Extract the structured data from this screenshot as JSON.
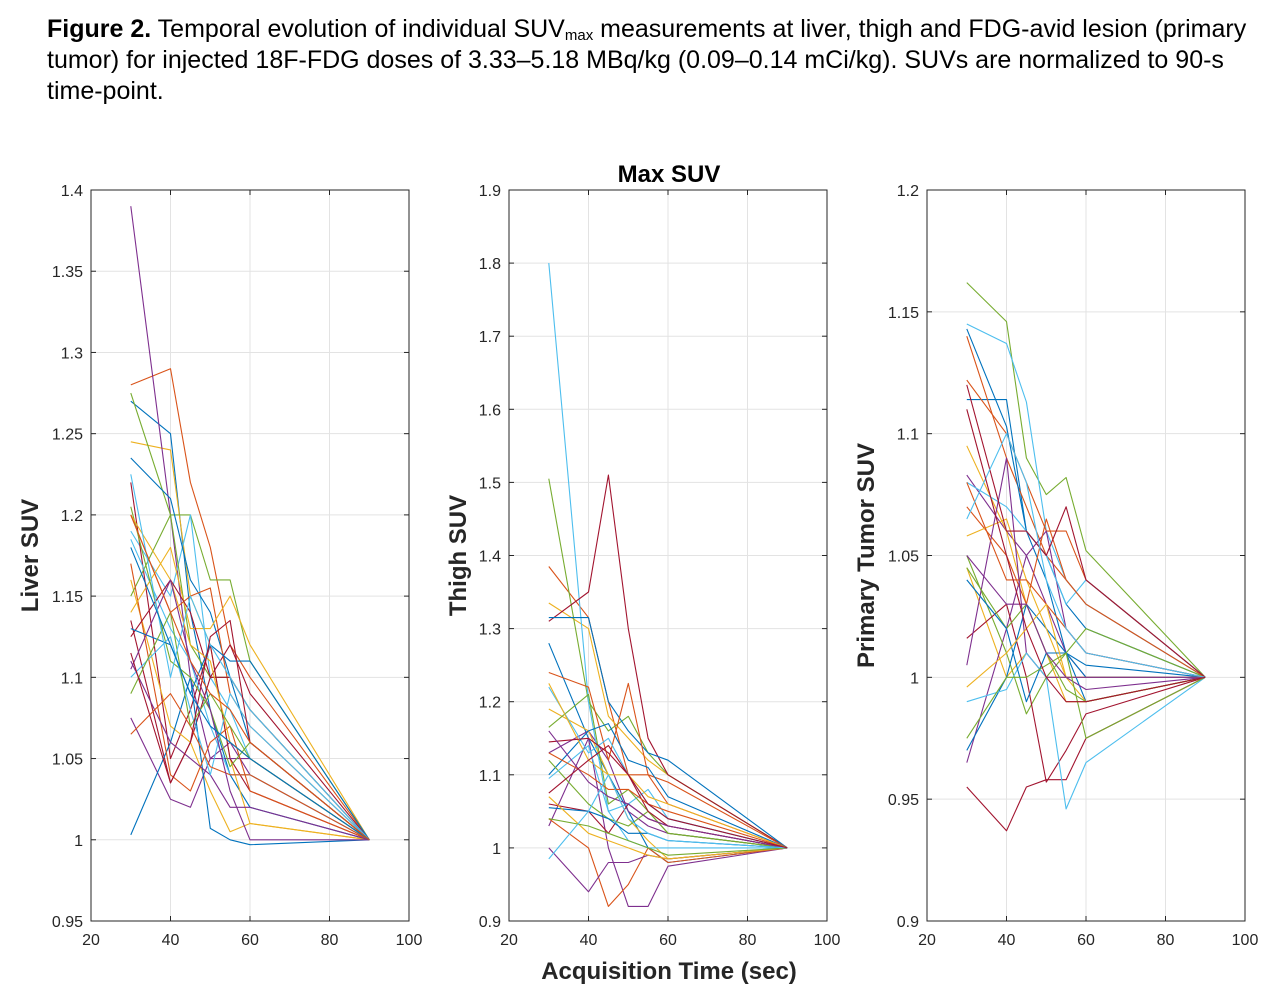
{
  "caption": {
    "label": "Figure 2.",
    "text_a": " Temporal evolution of individual SUV",
    "sub": "max",
    "text_b": " measurements at liver, thigh and FDG-avid lesion (primary tumor) for injected 18F-FDG doses of 3.33–5.18 MBq/kg (0.09–0.14 mCi/kg). SUVs are normalized to 90-s time-point."
  },
  "figure": {
    "title": "Max SUV",
    "xlabel": "Acquisition Time (sec)"
  },
  "series_colors": [
    "#0072BD",
    "#D95319",
    "#EDB120",
    "#7E2F8E",
    "#77AC30",
    "#4DBEEE",
    "#A2142F"
  ],
  "chart_data": [
    {
      "type": "line",
      "id": "liver",
      "ylabel": "Liver SUV",
      "xlim": [
        20,
        100
      ],
      "ylim": [
        0.95,
        1.4
      ],
      "xticks": [
        20,
        40,
        60,
        80,
        100
      ],
      "yticks": [
        0.95,
        1,
        1.05,
        1.1,
        1.15,
        1.2,
        1.25,
        1.3,
        1.35,
        1.4
      ],
      "ytick_labels": [
        "0.95",
        "1",
        "1.05",
        "1.1",
        "1.15",
        "1.2",
        "1.25",
        "1.3",
        "1.35",
        "1.4"
      ],
      "grid": true,
      "x": [
        30,
        40,
        45,
        50,
        55,
        60,
        90
      ],
      "series": [
        {
          "values": [
            1.27,
            1.25,
            1.14,
            1.08,
            1.04,
            1.02,
            1.0
          ]
        },
        {
          "values": [
            1.28,
            1.29,
            1.22,
            1.18,
            1.12,
            1.1,
            1.0
          ]
        },
        {
          "values": [
            1.245,
            1.24,
            1.15,
            1.12,
            1.05,
            1.01,
            1.0
          ]
        },
        {
          "values": [
            1.39,
            1.2,
            1.1,
            1.05,
            1.06,
            1.04,
            1.0
          ]
        },
        {
          "values": [
            1.275,
            1.2,
            1.2,
            1.16,
            1.16,
            1.11,
            1.0
          ]
        },
        {
          "values": [
            1.19,
            1.15,
            1.2,
            1.1,
            1.08,
            1.05,
            1.0
          ]
        },
        {
          "values": [
            1.22,
            1.05,
            1.08,
            1.12,
            1.05,
            1.03,
            1.0
          ]
        },
        {
          "values": [
            1.235,
            1.21,
            1.16,
            1.14,
            1.1,
            1.06,
            1.0
          ]
        },
        {
          "values": [
            1.2,
            1.14,
            1.15,
            1.155,
            1.09,
            1.07,
            1.0
          ]
        },
        {
          "values": [
            1.16,
            1.07,
            1.06,
            1.03,
            1.005,
            1.01,
            1.0
          ]
        },
        {
          "values": [
            1.075,
            1.025,
            1.02,
            1.05,
            1.05,
            1.05,
            1.0
          ]
        },
        {
          "values": [
            1.15,
            1.2,
            1.12,
            1.1,
            1.1,
            1.08,
            1.0
          ]
        },
        {
          "values": [
            1.185,
            1.13,
            1.11,
            1.07,
            1.04,
            1.04,
            1.0
          ]
        },
        {
          "values": [
            1.135,
            1.035,
            1.06,
            1.1,
            1.12,
            1.09,
            1.0
          ]
        },
        {
          "values": [
            1.003,
            1.06,
            1.1,
            1.007,
            1.0,
            0.997,
            1.0
          ]
        },
        {
          "values": [
            1.17,
            1.04,
            1.03,
            1.06,
            1.07,
            1.03,
            1.0
          ]
        },
        {
          "values": [
            1.14,
            1.18,
            1.13,
            1.13,
            1.15,
            1.12,
            1.0
          ]
        },
        {
          "values": [
            1.11,
            1.06,
            1.05,
            1.04,
            1.02,
            1.02,
            1.0
          ]
        },
        {
          "values": [
            1.205,
            1.11,
            1.1,
            1.08,
            1.045,
            1.06,
            1.0
          ]
        },
        {
          "values": [
            1.1,
            1.125,
            1.08,
            1.04,
            1.09,
            1.07,
            1.0
          ]
        },
        {
          "values": [
            1.125,
            1.16,
            1.14,
            1.1,
            1.1,
            1.08,
            1.0
          ]
        },
        {
          "values": [
            1.13,
            1.12,
            1.09,
            1.12,
            1.11,
            1.11,
            1.0
          ]
        },
        {
          "values": [
            1.065,
            1.09,
            1.07,
            1.045,
            1.04,
            1.04,
            1.0
          ]
        },
        {
          "values": [
            1.2,
            1.16,
            1.12,
            1.11,
            1.06,
            1.05,
            1.0
          ]
        },
        {
          "values": [
            1.105,
            1.16,
            1.11,
            1.08,
            1.03,
            1.0,
            1.0
          ]
        },
        {
          "values": [
            1.09,
            1.14,
            1.07,
            1.09,
            1.07,
            1.05,
            1.0
          ]
        },
        {
          "values": [
            1.225,
            1.1,
            1.15,
            1.12,
            1.1,
            1.08,
            1.0
          ]
        },
        {
          "values": [
            1.115,
            1.035,
            1.06,
            1.125,
            1.135,
            1.06,
            1.0
          ]
        },
        {
          "values": [
            1.18,
            1.12,
            1.09,
            1.07,
            1.06,
            1.05,
            1.0
          ]
        },
        {
          "values": [
            1.2,
            1.14,
            1.11,
            1.09,
            1.08,
            1.06,
            1.0
          ]
        }
      ]
    },
    {
      "type": "line",
      "id": "thigh",
      "ylabel": "Thigh SUV",
      "xlim": [
        20,
        100
      ],
      "ylim": [
        0.9,
        1.9
      ],
      "xticks": [
        20,
        40,
        60,
        80,
        100
      ],
      "yticks": [
        0.9,
        1,
        1.1,
        1.2,
        1.3,
        1.4,
        1.5,
        1.6,
        1.7,
        1.8,
        1.9
      ],
      "ytick_labels": [
        "0.9",
        "1",
        "1.1",
        "1.2",
        "1.3",
        "1.4",
        "1.5",
        "1.6",
        "1.7",
        "1.8",
        "1.9"
      ],
      "grid": true,
      "x": [
        30,
        40,
        45,
        50,
        55,
        60,
        90
      ],
      "series": [
        {
          "values": [
            1.28,
            1.15,
            1.1,
            1.05,
            1.0,
            0.98,
            1.0
          ]
        },
        {
          "values": [
            1.385,
            1.315,
            1.2,
            1.1,
            1.1,
            1.06,
            1.0
          ]
        },
        {
          "values": [
            1.335,
            1.3,
            1.18,
            1.15,
            1.12,
            1.1,
            1.0
          ]
        },
        {
          "values": [
            1.13,
            1.16,
            1.12,
            1.05,
            1.03,
            1.02,
            1.0
          ]
        },
        {
          "values": [
            1.505,
            1.2,
            1.16,
            1.18,
            1.13,
            1.1,
            1.0
          ]
        },
        {
          "values": [
            1.8,
            1.2,
            1.05,
            1.06,
            1.08,
            1.04,
            1.0
          ]
        },
        {
          "values": [
            1.31,
            1.35,
            1.51,
            1.3,
            1.15,
            1.1,
            1.0
          ]
        },
        {
          "values": [
            1.315,
            1.315,
            1.2,
            1.16,
            1.13,
            1.12,
            1.0
          ]
        },
        {
          "values": [
            1.24,
            1.22,
            1.12,
            1.225,
            1.1,
            1.09,
            1.0
          ]
        },
        {
          "values": [
            1.19,
            1.16,
            1.1,
            1.04,
            1.01,
            0.985,
            1.0
          ]
        },
        {
          "values": [
            1.03,
            1.15,
            1.0,
            0.92,
            0.92,
            0.975,
            1.0
          ]
        },
        {
          "values": [
            1.165,
            1.21,
            1.06,
            1.08,
            1.05,
            1.02,
            1.0
          ]
        },
        {
          "values": [
            1.22,
            1.13,
            1.15,
            1.1,
            1.06,
            1.04,
            1.0
          ]
        },
        {
          "values": [
            1.06,
            1.05,
            1.02,
            1.06,
            1.04,
            1.03,
            1.0
          ]
        },
        {
          "values": [
            1.1,
            1.16,
            1.17,
            1.12,
            1.11,
            1.07,
            1.0
          ]
        },
        {
          "values": [
            1.04,
            1.0,
            0.92,
            0.95,
            1.0,
            0.98,
            1.0
          ]
        },
        {
          "values": [
            1.225,
            1.12,
            1.1,
            1.1,
            1.07,
            1.06,
            1.0
          ]
        },
        {
          "values": [
            1.0,
            0.94,
            0.98,
            0.98,
            0.99,
            0.985,
            1.0
          ]
        },
        {
          "values": [
            1.12,
            1.06,
            1.04,
            1.03,
            1.05,
            1.02,
            1.0
          ]
        },
        {
          "values": [
            1.095,
            1.14,
            1.05,
            1.01,
            1.0,
            1.0,
            1.0
          ]
        },
        {
          "values": [
            1.145,
            1.15,
            1.13,
            1.1,
            1.05,
            1.03,
            1.0
          ]
        },
        {
          "values": [
            1.055,
            1.05,
            1.04,
            1.02,
            1.02,
            1.01,
            1.0
          ]
        },
        {
          "values": [
            1.13,
            1.1,
            1.08,
            1.08,
            1.06,
            1.05,
            1.0
          ]
        },
        {
          "values": [
            1.07,
            1.02,
            1.01,
            1.0,
            0.99,
            0.985,
            1.0
          ]
        },
        {
          "values": [
            1.16,
            1.09,
            1.07,
            1.06,
            1.04,
            1.03,
            1.0
          ]
        },
        {
          "values": [
            1.04,
            1.03,
            1.02,
            1.01,
            1.0,
            0.99,
            1.0
          ]
        },
        {
          "values": [
            0.985,
            1.05,
            1.1,
            1.04,
            1.02,
            1.01,
            1.0
          ]
        },
        {
          "values": [
            1.075,
            1.12,
            1.14,
            1.1,
            1.06,
            1.04,
            1.0
          ]
        }
      ]
    },
    {
      "type": "line",
      "id": "tumor",
      "ylabel": "Primary Tumor SUV",
      "xlim": [
        20,
        100
      ],
      "ylim": [
        0.9,
        1.2
      ],
      "xticks": [
        20,
        40,
        60,
        80,
        100
      ],
      "yticks": [
        0.9,
        0.95,
        1,
        1.05,
        1.1,
        1.15,
        1.2
      ],
      "ytick_labels": [
        "0.9",
        "0.95",
        "1",
        "1.05",
        "1.1",
        "1.15",
        "1.2"
      ],
      "grid": true,
      "x": [
        30,
        40,
        45,
        50,
        55,
        60,
        90
      ],
      "series": [
        {
          "values": [
            1.114,
            1.114,
            1.06,
            1.04,
            1.01,
            0.99,
            1.0
          ]
        },
        {
          "values": [
            1.14,
            1.09,
            1.07,
            1.05,
            1.04,
            1.03,
            1.0
          ]
        },
        {
          "values": [
            1.045,
            1.0,
            1.01,
            1.0,
            1.0,
            1.0,
            1.0
          ]
        },
        {
          "values": [
            1.083,
            1.06,
            1.05,
            1.03,
            1.01,
            1.0,
            1.0
          ]
        },
        {
          "values": [
            1.162,
            1.146,
            1.09,
            1.075,
            1.082,
            1.052,
            1.0
          ]
        },
        {
          "values": [
            1.145,
            1.137,
            1.113,
            1.06,
            1.04,
            1.03,
            1.0
          ]
        },
        {
          "values": [
            0.955,
            0.937,
            0.955,
            0.958,
            0.958,
            0.975,
            1.0
          ]
        },
        {
          "values": [
            1.143,
            1.103,
            1.06,
            1.05,
            1.03,
            1.02,
            1.0
          ]
        },
        {
          "values": [
            1.122,
            1.1,
            1.08,
            1.06,
            1.06,
            1.04,
            1.0
          ]
        },
        {
          "values": [
            1.095,
            1.06,
            1.03,
            1.01,
            0.99,
            0.99,
            1.0
          ]
        },
        {
          "values": [
            0.965,
            1.02,
            1.05,
            1.06,
            1.02,
            1.01,
            1.0
          ]
        },
        {
          "values": [
            1.05,
            1.01,
            0.985,
            1.0,
            1.01,
            1.02,
            1.0
          ]
        },
        {
          "values": [
            1.08,
            1.07,
            1.06,
            1.05,
            1.03,
            1.04,
            1.0
          ]
        },
        {
          "values": [
            1.016,
            1.03,
            1.0,
            0.957,
            0.97,
            0.985,
            1.0
          ]
        },
        {
          "values": [
            0.97,
            1.0,
            1.03,
            1.02,
            1.01,
            1.0,
            1.0
          ]
        },
        {
          "values": [
            1.07,
            1.05,
            1.03,
            1.065,
            1.04,
            1.03,
            1.0
          ]
        },
        {
          "values": [
            1.058,
            1.065,
            1.04,
            1.02,
            1.0,
            0.99,
            1.0
          ]
        },
        {
          "values": [
            1.005,
            1.09,
            1.01,
            1.0,
            1.0,
            0.995,
            1.0
          ]
        },
        {
          "values": [
            1.045,
            1.02,
            1.03,
            1.01,
            0.995,
            0.99,
            1.0
          ]
        },
        {
          "values": [
            0.99,
            0.995,
            1.01,
            1.0,
            0.946,
            0.965,
            1.0
          ]
        },
        {
          "values": [
            1.12,
            1.06,
            1.06,
            1.05,
            1.07,
            1.04,
            1.0
          ]
        },
        {
          "values": [
            1.04,
            1.02,
            0.99,
            1.01,
            1.01,
            1.005,
            1.0
          ]
        },
        {
          "values": [
            1.08,
            1.04,
            1.04,
            1.03,
            1.02,
            1.01,
            1.0
          ]
        },
        {
          "values": [
            0.996,
            1.01,
            1.02,
            1.03,
            1.0,
            1.0,
            1.0
          ]
        },
        {
          "values": [
            1.05,
            1.03,
            1.03,
            1.01,
            1.0,
            1.0,
            1.0
          ]
        },
        {
          "values": [
            0.975,
            1.0,
            1.0,
            1.005,
            1.01,
            0.975,
            1.0
          ]
        },
        {
          "values": [
            1.065,
            1.1,
            1.08,
            1.04,
            1.02,
            1.01,
            1.0
          ]
        },
        {
          "values": [
            1.11,
            1.05,
            1.02,
            1.0,
            0.99,
            0.99,
            1.0
          ]
        }
      ]
    }
  ]
}
